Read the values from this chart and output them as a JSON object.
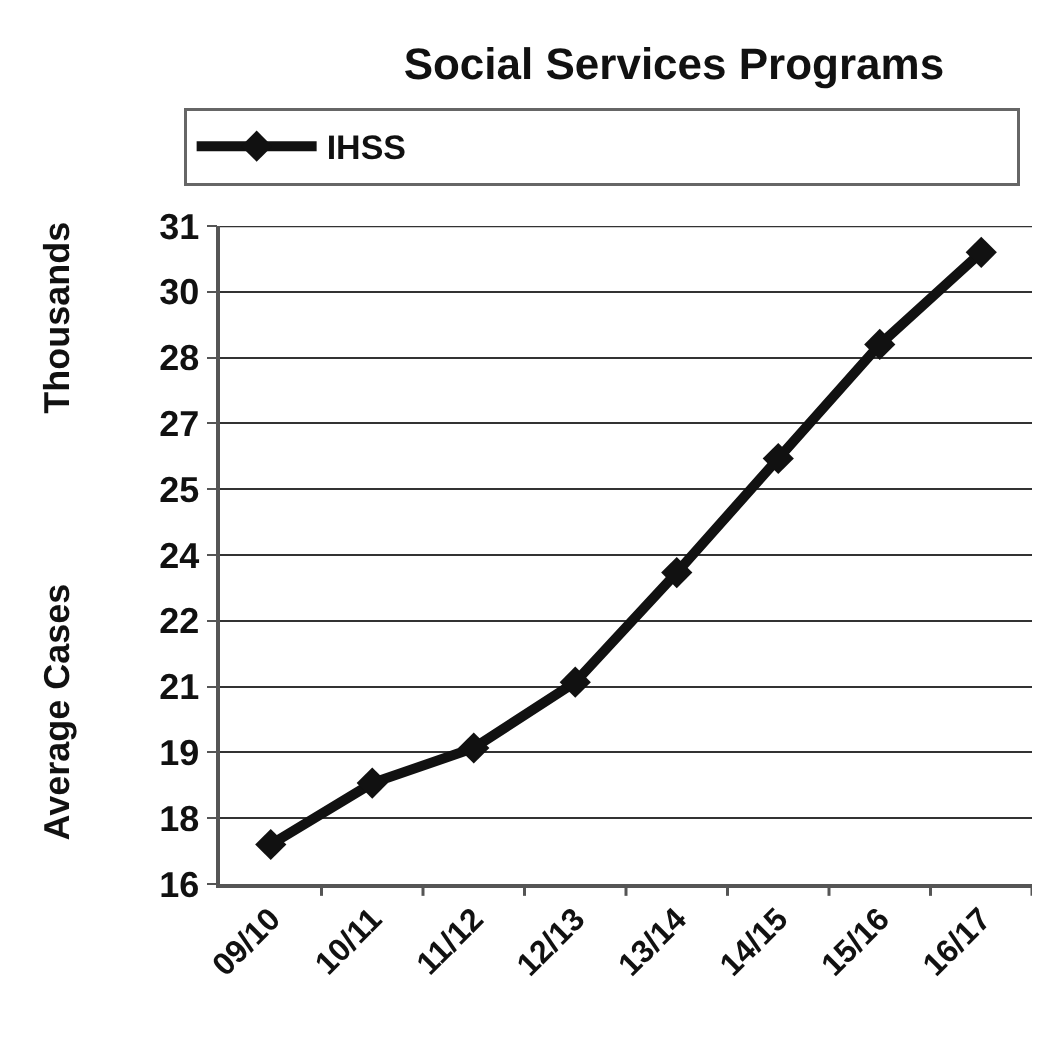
{
  "chart_data": {
    "type": "line",
    "title": "Social Services Programs",
    "ylabel": "Average Cases",
    "annotations": [
      "Thousands"
    ],
    "categories": [
      "09/10",
      "10/11",
      "11/12",
      "12/13",
      "13/14",
      "14/15",
      "15/16",
      "16/17"
    ],
    "series": [
      {
        "name": "IHSS",
        "color": "#111111",
        "values": [
          16.9,
          18.3,
          19.1,
          20.6,
          23.1,
          25.7,
          28.3,
          30.4
        ]
      }
    ],
    "ylim": [
      16,
      31
    ],
    "yticks": [
      16,
      {
        "value": 17.5,
        "label": "18"
      },
      19,
      {
        "value": 20.5,
        "label": "21"
      },
      22,
      {
        "value": 23.5,
        "label": "24"
      },
      25,
      {
        "value": 26.5,
        "label": "27"
      },
      28,
      {
        "value": 29.5,
        "label": "30"
      },
      31
    ],
    "grid": "y",
    "legend": "top",
    "marker": "diamond",
    "line_style": "solid"
  }
}
